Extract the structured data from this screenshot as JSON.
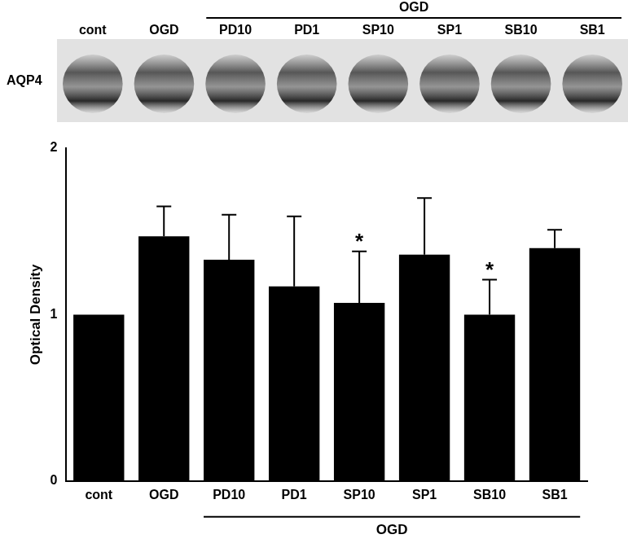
{
  "chart_data": {
    "type": "bar",
    "categories": [
      "cont",
      "OGD",
      "PD10",
      "PD1",
      "SP10",
      "SP1",
      "SB10",
      "SB1"
    ],
    "values": [
      1.0,
      1.47,
      1.33,
      1.17,
      1.07,
      1.36,
      1.0,
      1.4
    ],
    "error": [
      null,
      0.18,
      0.27,
      0.42,
      0.31,
      0.34,
      0.21,
      0.11
    ],
    "color": "#000000",
    "y_label": "Optical Density",
    "ylim": [
      0,
      2
    ],
    "yticks": [
      0,
      1,
      2
    ],
    "grid": false,
    "annotations": [
      {
        "category": "SP10",
        "text": "*"
      },
      {
        "category": "SB10",
        "text": "*"
      }
    ],
    "group_label": {
      "text": "OGD",
      "categories": [
        "PD10",
        "PD1",
        "SP10",
        "SP1",
        "SB10",
        "SB1"
      ]
    }
  },
  "blot": {
    "label": "AQP4",
    "lanes": [
      "cont",
      "OGD",
      "PD10",
      "PD1",
      "SP10",
      "SP1",
      "SB10",
      "SB1"
    ],
    "group_label": {
      "text": "OGD",
      "lanes": [
        "PD10",
        "PD1",
        "SP10",
        "SP1",
        "SB10",
        "SB1"
      ]
    }
  }
}
